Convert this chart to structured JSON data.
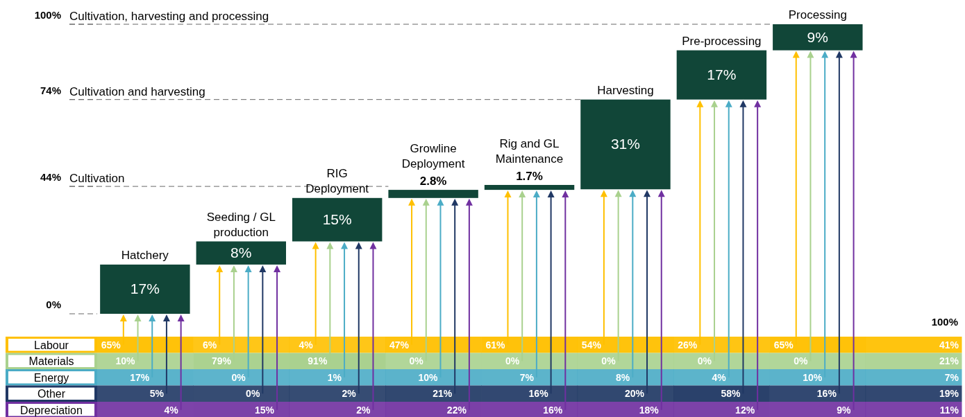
{
  "chart_data": [
    {
      "type": "bar",
      "categories": [
        "Hatchery",
        "Seeding / GL production",
        "RIG Deployment",
        "Growline Deployment",
        "Rig and GL Maintenance",
        "Harvesting",
        "Pre-processing",
        "Processing"
      ],
      "values": [
        17,
        8,
        15,
        2.8,
        1.7,
        31,
        17,
        9
      ],
      "base": [
        0,
        17,
        25,
        40,
        42.8,
        43,
        74,
        91
      ],
      "value_labels": [
        "17%",
        "8%",
        "15%",
        "2.8%",
        "1.7%",
        "31%",
        "17%",
        "9%"
      ],
      "color": "#114638",
      "ylim": [
        0,
        100
      ],
      "yticks": [
        {
          "value": 0,
          "label": "0%"
        },
        {
          "value": 44,
          "label": "44%"
        },
        {
          "value": 74,
          "label": "74%"
        },
        {
          "value": 100,
          "label": "100%"
        }
      ],
      "ref_lines": [
        {
          "axis": "y",
          "value": 44,
          "label": "Cultivation",
          "line_style": "dashed"
        },
        {
          "axis": "y",
          "value": 74,
          "label": "Cultivation and harvesting",
          "line_style": "dashed"
        },
        {
          "axis": "y",
          "value": 100,
          "label": "Cultivation, harvesting and processing",
          "line_style": "dashed"
        }
      ]
    },
    {
      "type": "heatmap",
      "categories": [
        null,
        null,
        null,
        null,
        null,
        null,
        null,
        null,
        null
      ],
      "annotations": [
        "100%"
      ],
      "y_categories": [
        "Labour",
        "Materials",
        "Energy",
        "Other",
        "Depreciation"
      ],
      "colors": [
        "#ffc000",
        "#a9d18e",
        "#4bacc6",
        "#203864",
        "#7030a0"
      ],
      "cells": [
        [
          65,
          6,
          4,
          47,
          61,
          54,
          26,
          65,
          41
        ],
        [
          10,
          79,
          91,
          0,
          0,
          0,
          0,
          0,
          21
        ],
        [
          17,
          0,
          1,
          10,
          7,
          8,
          4,
          10,
          7
        ],
        [
          5,
          0,
          2,
          21,
          16,
          20,
          58,
          16,
          19
        ],
        [
          4,
          15,
          2,
          22,
          16,
          18,
          12,
          9,
          11
        ]
      ],
      "cell_labels": [
        [
          "65%",
          "6%",
          "4%",
          "47%",
          "61%",
          "54%",
          "26%",
          "65%",
          "41%"
        ],
        [
          "10%",
          "79%",
          "91%",
          "0%",
          "0%",
          "0%",
          "0%",
          "0%",
          "21%"
        ],
        [
          "17%",
          "0%",
          "1%",
          "10%",
          "7%",
          "8%",
          "4%",
          "10%",
          "7%"
        ],
        [
          "5%",
          "0%",
          "2%",
          "21%",
          "16%",
          "20%",
          "58%",
          "16%",
          "19%"
        ],
        [
          "4%",
          "15%",
          "2%",
          "22%",
          "16%",
          "18%",
          "12%",
          "9%",
          "11%"
        ]
      ]
    }
  ]
}
